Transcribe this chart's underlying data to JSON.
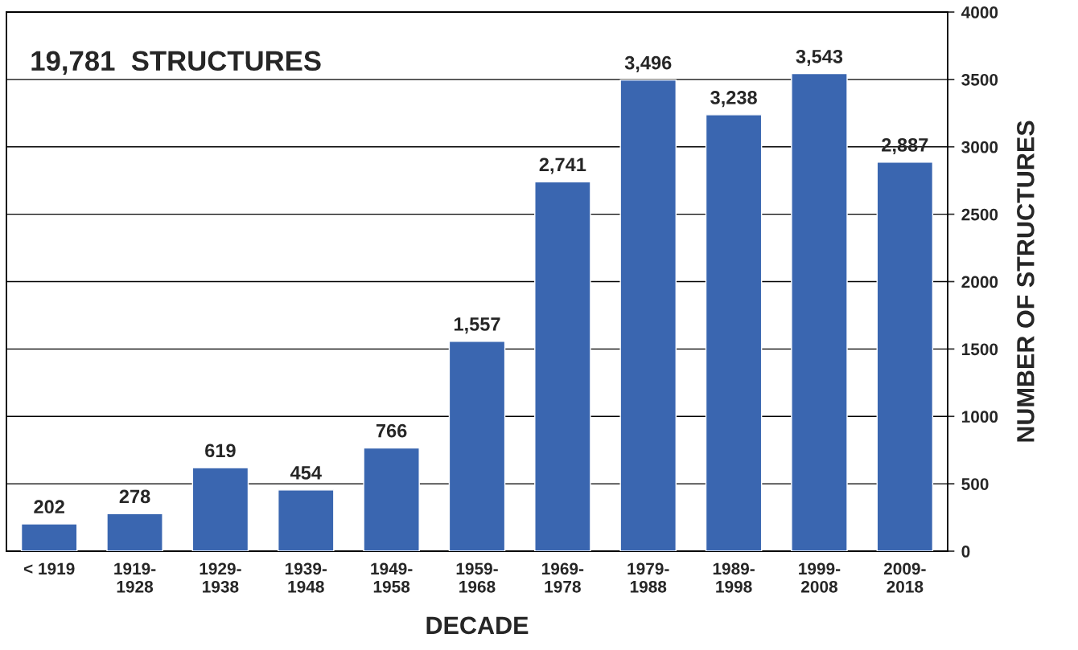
{
  "chart_data": {
    "type": "bar",
    "title": "19,781  STRUCTURES",
    "xlabel": "DECADE",
    "ylabel": "NUMBER OF STRUCTURES",
    "categories": [
      "< 1919",
      "1919-\n1928",
      "1929-\n1938",
      "1939-\n1948",
      "1949-\n1958",
      "1959-\n1968",
      "1969-\n1978",
      "1979-\n1988",
      "1989-\n1998",
      "1999-\n2008",
      "2009-\n2018"
    ],
    "values": [
      202,
      278,
      619,
      454,
      766,
      1557,
      2741,
      3496,
      3238,
      3543,
      2887
    ],
    "value_labels": [
      "202",
      "278",
      "619",
      "454",
      "766",
      "1,557",
      "2,741",
      "3,496",
      "3,238",
      "3,543",
      "2,887"
    ],
    "color": "#3a66b0",
    "ylim": [
      0,
      4000
    ],
    "yticks": [
      0,
      500,
      1000,
      1500,
      2000,
      2500,
      3000,
      3500,
      4000
    ],
    "grid": "y",
    "legend": false
  }
}
